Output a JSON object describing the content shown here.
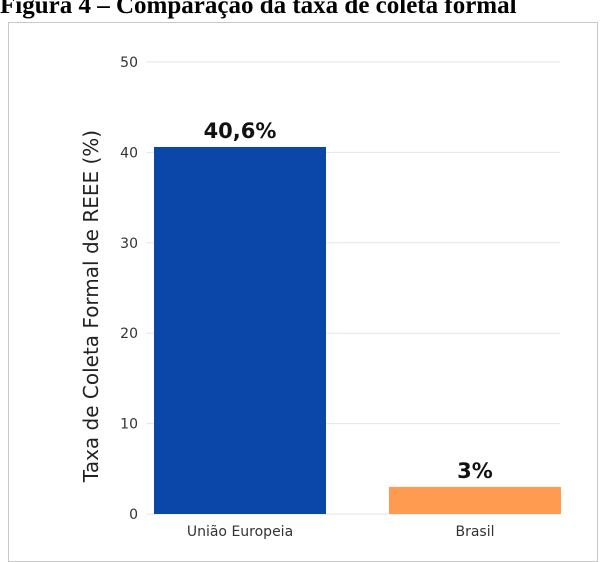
{
  "figure": {
    "caption": "Figura 4 – Comparação da taxa de coleta formal"
  },
  "chart_data": {
    "type": "bar",
    "categories": [
      "União Europeia",
      "Brasil"
    ],
    "values": [
      40.6,
      3
    ],
    "data_labels": [
      "40,6%",
      "3%"
    ],
    "colors": [
      "#0a47a8",
      "#ff9b50"
    ],
    "ylabel": "Taxa de Coleta Formal de REEE (%)",
    "ylim": [
      0,
      50
    ],
    "yticks": [
      0,
      10,
      20,
      30,
      40,
      50
    ],
    "grid": true,
    "legend": "none"
  }
}
